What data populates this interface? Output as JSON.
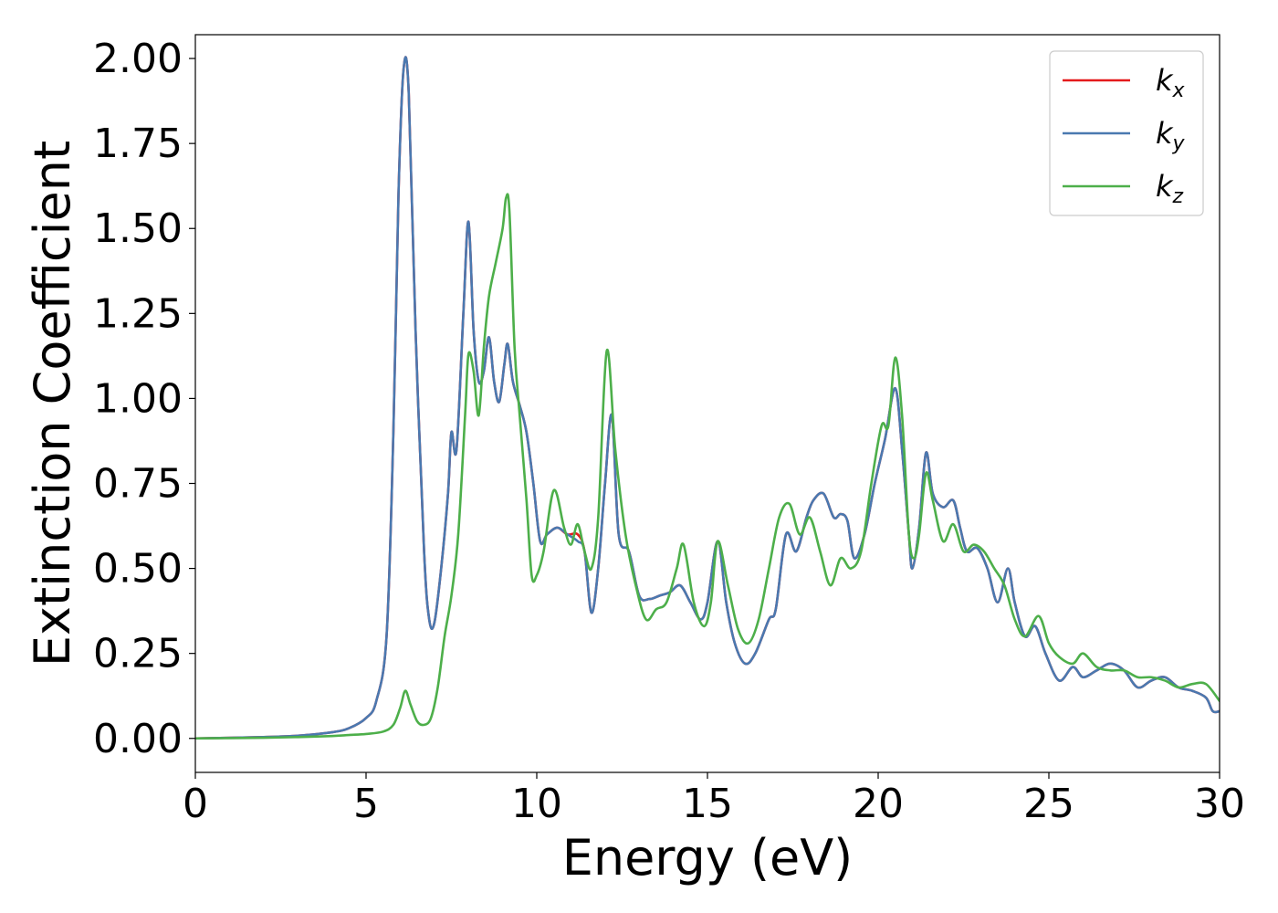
{
  "chart_data": {
    "type": "line",
    "title": "",
    "xlabel": "Energy (eV)",
    "ylabel": "Extinction Coefficient",
    "xlim": [
      0,
      30
    ],
    "ylim": [
      -0.1,
      2.07
    ],
    "xticks": [
      0,
      5,
      10,
      15,
      20,
      25,
      30
    ],
    "xtick_labels": [
      "0",
      "5",
      "10",
      "15",
      "20",
      "25",
      "30"
    ],
    "yticks": [
      0.0,
      0.25,
      0.5,
      0.75,
      1.0,
      1.25,
      1.5,
      1.75,
      2.0
    ],
    "ytick_labels": [
      "0.00",
      "0.25",
      "0.50",
      "0.75",
      "1.00",
      "1.25",
      "1.50",
      "1.75",
      "2.00"
    ],
    "grid": false,
    "legend_position": "top-right",
    "series": [
      {
        "name": "k",
        "subscript": "x",
        "color": "#e41a1c",
        "x": [
          0,
          2,
          3,
          4,
          4.5,
          5,
          5.3,
          5.6,
          5.8,
          5.95,
          6.1,
          6.25,
          6.45,
          6.7,
          6.85,
          7.0,
          7.2,
          7.4,
          7.5,
          7.65,
          7.85,
          8.0,
          8.15,
          8.3,
          8.45,
          8.6,
          8.75,
          8.9,
          9.05,
          9.15,
          9.3,
          9.5,
          9.7,
          9.9,
          10.1,
          10.3,
          10.6,
          10.9,
          11.2,
          11.4,
          11.6,
          11.8,
          12.0,
          12.2,
          12.4,
          12.7,
          13.0,
          13.3,
          13.6,
          13.9,
          14.2,
          14.5,
          14.8,
          15.0,
          15.3,
          15.55,
          15.8,
          16.1,
          16.4,
          16.8,
          17.0,
          17.3,
          17.6,
          17.9,
          18.1,
          18.4,
          18.7,
          18.9,
          19.1,
          19.3,
          19.6,
          19.9,
          20.2,
          20.5,
          20.7,
          20.9,
          21.0,
          21.2,
          21.4,
          21.6,
          21.9,
          22.2,
          22.4,
          22.6,
          22.9,
          23.2,
          23.5,
          23.8,
          24.0,
          24.3,
          24.6,
          24.9,
          25.3,
          25.7,
          26.0,
          26.4,
          26.8,
          27.2,
          27.6,
          28.0,
          28.4,
          28.8,
          29.2,
          29.6,
          29.8,
          30
        ],
        "y": [
          0.0,
          0.004,
          0.008,
          0.018,
          0.03,
          0.06,
          0.11,
          0.3,
          0.9,
          1.6,
          1.97,
          1.9,
          1.2,
          0.55,
          0.35,
          0.34,
          0.5,
          0.72,
          0.9,
          0.85,
          1.25,
          1.52,
          1.2,
          1.05,
          1.08,
          1.18,
          1.05,
          0.99,
          1.1,
          1.16,
          1.05,
          0.98,
          0.9,
          0.75,
          0.58,
          0.6,
          0.62,
          0.6,
          0.6,
          0.55,
          0.37,
          0.5,
          0.75,
          0.95,
          0.6,
          0.55,
          0.42,
          0.41,
          0.42,
          0.43,
          0.45,
          0.4,
          0.35,
          0.4,
          0.58,
          0.4,
          0.28,
          0.22,
          0.25,
          0.35,
          0.38,
          0.6,
          0.55,
          0.65,
          0.7,
          0.72,
          0.65,
          0.66,
          0.64,
          0.53,
          0.6,
          0.75,
          0.88,
          1.03,
          0.85,
          0.6,
          0.5,
          0.62,
          0.84,
          0.72,
          0.68,
          0.7,
          0.62,
          0.55,
          0.56,
          0.5,
          0.4,
          0.5,
          0.4,
          0.3,
          0.33,
          0.25,
          0.17,
          0.21,
          0.18,
          0.2,
          0.22,
          0.2,
          0.15,
          0.17,
          0.18,
          0.15,
          0.14,
          0.12,
          0.08,
          0.08
        ]
      },
      {
        "name": "k",
        "subscript": "y",
        "color": "#4a79b0",
        "x": [
          0,
          2,
          3,
          4,
          4.5,
          5,
          5.3,
          5.6,
          5.8,
          5.95,
          6.1,
          6.25,
          6.45,
          6.7,
          6.85,
          7.0,
          7.2,
          7.4,
          7.5,
          7.65,
          7.85,
          8.0,
          8.15,
          8.3,
          8.45,
          8.6,
          8.75,
          8.9,
          9.05,
          9.15,
          9.3,
          9.5,
          9.7,
          9.9,
          10.1,
          10.3,
          10.6,
          10.9,
          11.2,
          11.4,
          11.6,
          11.8,
          12.0,
          12.2,
          12.4,
          12.7,
          13.0,
          13.3,
          13.6,
          13.9,
          14.2,
          14.5,
          14.8,
          15.0,
          15.3,
          15.55,
          15.8,
          16.1,
          16.4,
          16.8,
          17.0,
          17.3,
          17.6,
          17.9,
          18.1,
          18.4,
          18.7,
          18.9,
          19.1,
          19.3,
          19.6,
          19.9,
          20.2,
          20.5,
          20.7,
          20.9,
          21.0,
          21.2,
          21.4,
          21.6,
          21.9,
          22.2,
          22.4,
          22.6,
          22.9,
          23.2,
          23.5,
          23.8,
          24.0,
          24.3,
          24.6,
          24.9,
          25.3,
          25.7,
          26.0,
          26.4,
          26.8,
          27.2,
          27.6,
          28.0,
          28.4,
          28.8,
          29.2,
          29.6,
          29.8,
          30
        ],
        "y": [
          0.0,
          0.004,
          0.008,
          0.018,
          0.03,
          0.06,
          0.11,
          0.3,
          0.9,
          1.6,
          1.97,
          1.9,
          1.2,
          0.55,
          0.35,
          0.34,
          0.5,
          0.72,
          0.9,
          0.85,
          1.25,
          1.52,
          1.2,
          1.05,
          1.08,
          1.18,
          1.05,
          0.99,
          1.1,
          1.16,
          1.05,
          0.98,
          0.9,
          0.75,
          0.58,
          0.6,
          0.62,
          0.6,
          0.58,
          0.55,
          0.37,
          0.5,
          0.75,
          0.95,
          0.6,
          0.55,
          0.42,
          0.41,
          0.42,
          0.43,
          0.45,
          0.4,
          0.35,
          0.4,
          0.58,
          0.4,
          0.28,
          0.22,
          0.25,
          0.35,
          0.38,
          0.6,
          0.55,
          0.65,
          0.7,
          0.72,
          0.65,
          0.66,
          0.64,
          0.53,
          0.6,
          0.75,
          0.88,
          1.03,
          0.85,
          0.6,
          0.5,
          0.62,
          0.84,
          0.72,
          0.68,
          0.7,
          0.62,
          0.55,
          0.56,
          0.5,
          0.4,
          0.5,
          0.4,
          0.3,
          0.33,
          0.25,
          0.17,
          0.21,
          0.18,
          0.2,
          0.22,
          0.2,
          0.15,
          0.17,
          0.18,
          0.15,
          0.14,
          0.12,
          0.08,
          0.08
        ]
      },
      {
        "name": "k",
        "subscript": "z",
        "color": "#4daf4a",
        "x": [
          0,
          2,
          3,
          4,
          4.5,
          5,
          5.5,
          5.8,
          6.0,
          6.15,
          6.3,
          6.5,
          6.7,
          6.9,
          7.1,
          7.3,
          7.5,
          7.7,
          7.9,
          8.0,
          8.15,
          8.3,
          8.45,
          8.6,
          8.8,
          9.0,
          9.1,
          9.2,
          9.35,
          9.5,
          9.7,
          9.85,
          10.0,
          10.2,
          10.5,
          10.8,
          11.0,
          11.2,
          11.4,
          11.6,
          11.8,
          12.05,
          12.3,
          12.6,
          12.9,
          13.2,
          13.5,
          13.8,
          14.1,
          14.3,
          14.6,
          14.9,
          15.1,
          15.3,
          15.6,
          15.9,
          16.2,
          16.5,
          16.8,
          17.1,
          17.4,
          17.7,
          18.0,
          18.3,
          18.6,
          18.9,
          19.2,
          19.5,
          19.8,
          20.1,
          20.3,
          20.5,
          20.7,
          20.9,
          21.05,
          21.2,
          21.4,
          21.6,
          21.9,
          22.2,
          22.5,
          22.8,
          23.1,
          23.4,
          23.7,
          24.0,
          24.3,
          24.7,
          25.0,
          25.3,
          25.7,
          26.0,
          26.4,
          26.8,
          27.2,
          27.6,
          28.0,
          28.4,
          28.8,
          29.2,
          29.6,
          30
        ],
        "y": [
          0.0,
          0.002,
          0.004,
          0.007,
          0.01,
          0.013,
          0.02,
          0.04,
          0.09,
          0.14,
          0.1,
          0.05,
          0.04,
          0.06,
          0.15,
          0.3,
          0.42,
          0.6,
          0.95,
          1.13,
          1.08,
          0.95,
          1.15,
          1.3,
          1.4,
          1.5,
          1.59,
          1.55,
          1.15,
          0.95,
          0.7,
          0.48,
          0.48,
          0.55,
          0.73,
          0.62,
          0.57,
          0.63,
          0.55,
          0.5,
          0.65,
          1.14,
          0.85,
          0.6,
          0.45,
          0.35,
          0.38,
          0.4,
          0.5,
          0.57,
          0.4,
          0.33,
          0.4,
          0.58,
          0.45,
          0.32,
          0.28,
          0.35,
          0.5,
          0.65,
          0.69,
          0.6,
          0.65,
          0.55,
          0.45,
          0.53,
          0.5,
          0.55,
          0.75,
          0.92,
          0.92,
          1.12,
          0.95,
          0.6,
          0.53,
          0.6,
          0.78,
          0.7,
          0.58,
          0.63,
          0.55,
          0.57,
          0.55,
          0.5,
          0.45,
          0.35,
          0.3,
          0.36,
          0.28,
          0.24,
          0.22,
          0.25,
          0.21,
          0.2,
          0.2,
          0.18,
          0.18,
          0.17,
          0.15,
          0.16,
          0.16,
          0.11
        ]
      }
    ]
  }
}
